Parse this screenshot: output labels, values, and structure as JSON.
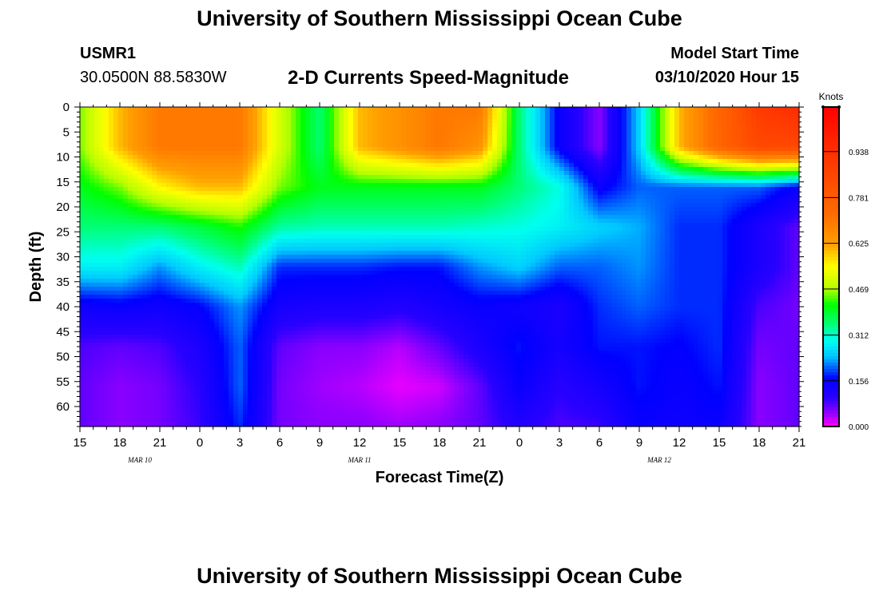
{
  "header": {
    "title": "University of Southern Mississippi Ocean Cube",
    "station": "USMR1",
    "coordinates": "30.0500N 88.5830W",
    "plot_title": "2-D Currents Speed-Magnitude",
    "model_start_label": "Model Start Time",
    "model_start_value": "03/10/2020 Hour 15"
  },
  "footer": {
    "title": "University of Southern Mississippi Ocean Cube"
  },
  "chart_data": {
    "type": "heatmap",
    "title": "2-D Currents Speed-Magnitude",
    "xlabel": "Forecast Time(Z)",
    "ylabel": "Depth (ft)",
    "x_hours_from_start": [
      0,
      54
    ],
    "x_tick_labels": [
      "15",
      "18",
      "21",
      "0",
      "3",
      "6",
      "9",
      "12",
      "15",
      "18",
      "21",
      "0",
      "3",
      "6",
      "9",
      "12",
      "15",
      "18",
      "21"
    ],
    "date_labels": [
      {
        "label": "MAR 10",
        "hour": 4.5
      },
      {
        "label": "MAR 11",
        "hour": 21
      },
      {
        "label": "MAR 12",
        "hour": 43.5
      }
    ],
    "ylim": [
      0,
      64
    ],
    "y_ticks": [
      0,
      5,
      10,
      15,
      20,
      25,
      30,
      35,
      40,
      45,
      50,
      55,
      60
    ],
    "colorbar": {
      "label": "Knots",
      "range": [
        0,
        1.09
      ],
      "tick_values": [
        0.0,
        0.156,
        0.312,
        0.469,
        0.625,
        0.781,
        0.938
      ],
      "tick_labels": [
        "0.000",
        "0.156",
        "0.312",
        "0.469",
        "0.625",
        "0.781",
        "0.938"
      ]
    },
    "depths_ft": [
      0,
      8,
      16,
      24,
      32,
      40,
      48,
      56,
      64
    ],
    "times_hours": [
      0,
      3,
      6,
      9,
      12,
      15,
      18,
      21,
      24,
      27,
      30,
      33,
      36,
      39,
      42,
      45,
      48,
      51,
      54
    ],
    "speed_knots": [
      [
        0.45,
        0.6,
        0.7,
        0.7,
        0.7,
        0.5,
        0.35,
        0.6,
        0.65,
        0.7,
        0.7,
        0.35,
        0.15,
        0.05,
        0.25,
        0.6,
        0.75,
        0.9,
        0.95
      ],
      [
        0.45,
        0.6,
        0.7,
        0.7,
        0.7,
        0.5,
        0.35,
        0.6,
        0.65,
        0.7,
        0.65,
        0.35,
        0.15,
        0.05,
        0.25,
        0.6,
        0.75,
        0.85,
        0.85
      ],
      [
        0.4,
        0.45,
        0.55,
        0.6,
        0.6,
        0.45,
        0.4,
        0.4,
        0.4,
        0.4,
        0.4,
        0.35,
        0.3,
        0.15,
        0.2,
        0.2,
        0.2,
        0.2,
        0.15
      ],
      [
        0.35,
        0.35,
        0.35,
        0.38,
        0.42,
        0.33,
        0.32,
        0.32,
        0.32,
        0.32,
        0.31,
        0.3,
        0.28,
        0.25,
        0.23,
        0.18,
        0.18,
        0.12,
        0.07
      ],
      [
        0.28,
        0.28,
        0.22,
        0.28,
        0.32,
        0.18,
        0.18,
        0.18,
        0.17,
        0.17,
        0.22,
        0.25,
        0.2,
        0.2,
        0.22,
        0.18,
        0.18,
        0.12,
        0.07
      ],
      [
        0.14,
        0.15,
        0.14,
        0.16,
        0.22,
        0.13,
        0.12,
        0.12,
        0.11,
        0.13,
        0.15,
        0.14,
        0.12,
        0.18,
        0.2,
        0.18,
        0.18,
        0.08,
        0.06
      ],
      [
        0.08,
        0.07,
        0.08,
        0.12,
        0.2,
        0.07,
        0.05,
        0.05,
        0.03,
        0.07,
        0.12,
        0.17,
        0.13,
        0.17,
        0.17,
        0.16,
        0.18,
        0.06,
        0.07
      ],
      [
        0.07,
        0.05,
        0.06,
        0.1,
        0.2,
        0.06,
        0.04,
        0.03,
        0.01,
        0.02,
        0.07,
        0.15,
        0.1,
        0.13,
        0.17,
        0.15,
        0.17,
        0.05,
        0.07
      ],
      [
        0.07,
        0.05,
        0.06,
        0.09,
        0.18,
        0.06,
        0.05,
        0.05,
        0.04,
        0.05,
        0.07,
        0.11,
        0.08,
        0.09,
        0.15,
        0.14,
        0.15,
        0.05,
        0.07
      ]
    ]
  }
}
